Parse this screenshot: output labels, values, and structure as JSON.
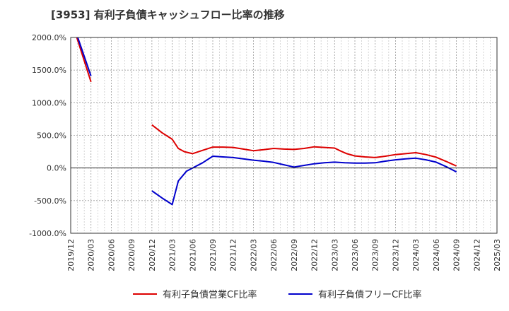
{
  "chart_data": {
    "type": "line",
    "title": "[3953]  有利子負債キャッシュフロー比率の推移",
    "xlabel": "",
    "ylabel": "",
    "ylim": [
      -1000,
      2000
    ],
    "y_ticks": [
      2000,
      1500,
      1000,
      500,
      0,
      -500,
      -1000
    ],
    "y_tick_labels": [
      "2000.0%",
      "1500.0%",
      "1000.0%",
      "500.0%",
      "0.0%",
      "-500.0%",
      "-1000.0%"
    ],
    "x_tick_labels": [
      "2019/12",
      "2020/03",
      "2020/06",
      "2020/09",
      "2020/12",
      "2021/03",
      "2021/06",
      "2021/09",
      "2021/12",
      "2022/03",
      "2022/06",
      "2022/09",
      "2022/12",
      "2023/03",
      "2023/06",
      "2023/09",
      "2023/12",
      "2024/03",
      "2024/06",
      "2024/09",
      "2024/12",
      "2025/03"
    ],
    "grid": true,
    "legend_position": "bottom",
    "series": [
      {
        "name": "有利子負債営業CF比率",
        "color": "#dd0000",
        "segments": [
          [
            [
              0.3,
              2000
            ],
            [
              1.0,
              1320
            ]
          ],
          [
            [
              4.0,
              660
            ],
            [
              4.5,
              540
            ],
            [
              5.0,
              440
            ],
            [
              5.3,
              300
            ],
            [
              5.6,
              250
            ],
            [
              6.0,
              220
            ],
            [
              6.5,
              270
            ],
            [
              7.0,
              320
            ],
            [
              7.5,
              320
            ],
            [
              8.0,
              315
            ],
            [
              8.5,
              290
            ],
            [
              9.0,
              265
            ],
            [
              9.5,
              280
            ],
            [
              10.0,
              300
            ],
            [
              10.5,
              290
            ],
            [
              11.0,
              285
            ],
            [
              11.5,
              300
            ],
            [
              12.0,
              325
            ],
            [
              12.5,
              315
            ],
            [
              13.0,
              305
            ],
            [
              13.3,
              260
            ],
            [
              13.6,
              220
            ],
            [
              14.0,
              185
            ],
            [
              14.5,
              170
            ],
            [
              15.0,
              160
            ],
            [
              15.5,
              180
            ],
            [
              16.0,
              205
            ],
            [
              16.5,
              220
            ],
            [
              17.0,
              235
            ],
            [
              17.5,
              205
            ],
            [
              18.0,
              165
            ],
            [
              18.5,
              100
            ],
            [
              19.0,
              30
            ]
          ]
        ]
      },
      {
        "name": "有利子負債フリーCF比率",
        "color": "#0000cc",
        "segments": [
          [
            [
              0.35,
              2000
            ],
            [
              1.0,
              1410
            ]
          ],
          [
            [
              4.0,
              -350
            ],
            [
              4.5,
              -460
            ],
            [
              5.0,
              -560
            ],
            [
              5.3,
              -200
            ],
            [
              5.7,
              -50
            ],
            [
              6.0,
              0
            ],
            [
              6.5,
              80
            ],
            [
              7.0,
              180
            ],
            [
              7.5,
              170
            ],
            [
              8.0,
              160
            ],
            [
              8.5,
              140
            ],
            [
              9.0,
              120
            ],
            [
              9.5,
              105
            ],
            [
              10.0,
              85
            ],
            [
              10.5,
              50
            ],
            [
              11.0,
              15
            ],
            [
              11.5,
              40
            ],
            [
              12.0,
              65
            ],
            [
              12.5,
              80
            ],
            [
              13.0,
              90
            ],
            [
              13.5,
              80
            ],
            [
              14.0,
              75
            ],
            [
              14.5,
              75
            ],
            [
              15.0,
              80
            ],
            [
              15.5,
              105
            ],
            [
              16.0,
              125
            ],
            [
              16.5,
              140
            ],
            [
              17.0,
              150
            ],
            [
              17.5,
              125
            ],
            [
              18.0,
              90
            ],
            [
              18.5,
              20
            ],
            [
              19.0,
              -60
            ]
          ]
        ]
      }
    ]
  }
}
